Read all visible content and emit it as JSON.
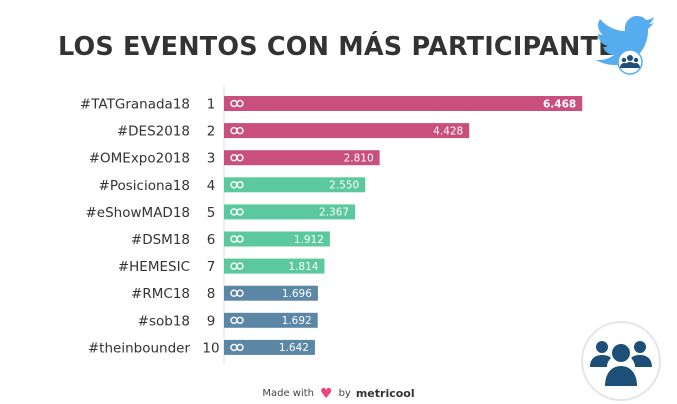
{
  "chart_data": {
    "type": "bar",
    "orientation": "horizontal",
    "title": "LOS EVENTOS CON MÁS PARTICIPANTES",
    "categories": [
      "#TATGranada18",
      "#DES2018",
      "#OMExpo2018",
      "#Posiciona18",
      "#eShowMAD18",
      "#DSM18",
      "#HEMESIC",
      "#RMC18",
      "#sob18",
      "#theinbounder"
    ],
    "ranks": [
      "1",
      "2",
      "3",
      "4",
      "5",
      "6",
      "7",
      "8",
      "9",
      "10"
    ],
    "values": [
      6468,
      4428,
      2810,
      2550,
      2367,
      1912,
      1814,
      1696,
      1692,
      1642
    ],
    "value_labels": [
      "6.468",
      "4.428",
      "2.810",
      "2.550",
      "2.367",
      "1.912",
      "1.814",
      "1.696",
      "1.692",
      "1.642"
    ],
    "bar_colors": [
      "#c94f7c",
      "#c94f7c",
      "#c94f7c",
      "#5bc8a0",
      "#5bc8a0",
      "#5bc8a0",
      "#5bc8a0",
      "#5b86a6",
      "#5b86a6",
      "#5b86a6"
    ],
    "bar_icon": "link-icon",
    "xlim": [
      0,
      6500
    ],
    "grid": false,
    "legend": "none"
  },
  "footer": {
    "made_with": "Made with",
    "by": "by",
    "brand": "metricool"
  },
  "icons": {
    "bird": "twitter-bird-icon",
    "people_badge": "people-group-icon",
    "heart": "heart-icon"
  },
  "colors": {
    "twitter_blue": "#55acee",
    "navy": "#1d4f78",
    "title": "#333333",
    "heart": "#e8467c"
  }
}
